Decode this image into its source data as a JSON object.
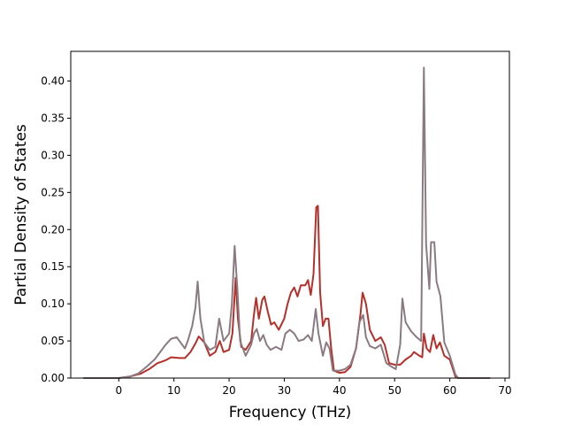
{
  "chart_data": {
    "type": "line",
    "title": "",
    "xlabel": "Frequency (THz)",
    "ylabel": "Partial Density of States",
    "xlim": [
      -8.7,
      70.8
    ],
    "ylim": [
      0.0,
      0.44
    ],
    "xticks": [
      0,
      10,
      20,
      30,
      40,
      50,
      60,
      70
    ],
    "yticks": [
      0.0,
      0.05,
      0.1,
      0.15,
      0.2,
      0.25,
      0.3,
      0.35,
      0.4
    ],
    "xtick_labels": [
      "0",
      "10",
      "20",
      "30",
      "40",
      "50",
      "60",
      "70"
    ],
    "ytick_labels": [
      "0.00",
      "0.05",
      "0.10",
      "0.15",
      "0.20",
      "0.25",
      "0.30",
      "0.35",
      "0.40"
    ],
    "grid": false,
    "legend": "none",
    "series": [
      {
        "color": "#b5302a",
        "points": [
          [
            -6.4,
            0.0
          ],
          [
            0.0,
            0.0
          ],
          [
            2.0,
            0.002
          ],
          [
            4.0,
            0.006
          ],
          [
            5.5,
            0.012
          ],
          [
            7.0,
            0.02
          ],
          [
            8.5,
            0.024
          ],
          [
            9.5,
            0.028
          ],
          [
            11.0,
            0.027
          ],
          [
            12.0,
            0.027
          ],
          [
            13.0,
            0.035
          ],
          [
            14.0,
            0.048
          ],
          [
            14.5,
            0.056
          ],
          [
            15.5,
            0.048
          ],
          [
            16.5,
            0.03
          ],
          [
            17.5,
            0.035
          ],
          [
            18.3,
            0.05
          ],
          [
            19.0,
            0.035
          ],
          [
            20.0,
            0.038
          ],
          [
            20.6,
            0.06
          ],
          [
            21.2,
            0.135
          ],
          [
            21.6,
            0.08
          ],
          [
            22.2,
            0.042
          ],
          [
            23.0,
            0.038
          ],
          [
            24.0,
            0.05
          ],
          [
            24.5,
            0.085
          ],
          [
            24.9,
            0.108
          ],
          [
            25.4,
            0.08
          ],
          [
            26.0,
            0.105
          ],
          [
            26.4,
            0.11
          ],
          [
            27.0,
            0.09
          ],
          [
            27.6,
            0.072
          ],
          [
            28.2,
            0.075
          ],
          [
            29.0,
            0.065
          ],
          [
            30.0,
            0.08
          ],
          [
            30.6,
            0.1
          ],
          [
            31.2,
            0.115
          ],
          [
            31.8,
            0.122
          ],
          [
            32.4,
            0.11
          ],
          [
            33.0,
            0.125
          ],
          [
            33.8,
            0.125
          ],
          [
            34.3,
            0.132
          ],
          [
            34.8,
            0.112
          ],
          [
            35.3,
            0.14
          ],
          [
            35.8,
            0.23
          ],
          [
            36.1,
            0.232
          ],
          [
            36.5,
            0.115
          ],
          [
            37.0,
            0.07
          ],
          [
            37.5,
            0.08
          ],
          [
            38.0,
            0.08
          ],
          [
            38.5,
            0.04
          ],
          [
            39.0,
            0.01
          ],
          [
            40.0,
            0.007
          ],
          [
            41.0,
            0.008
          ],
          [
            42.0,
            0.015
          ],
          [
            43.0,
            0.04
          ],
          [
            43.8,
            0.085
          ],
          [
            44.2,
            0.115
          ],
          [
            44.8,
            0.1
          ],
          [
            45.5,
            0.065
          ],
          [
            46.5,
            0.05
          ],
          [
            47.5,
            0.055
          ],
          [
            48.2,
            0.045
          ],
          [
            49.0,
            0.02
          ],
          [
            50.0,
            0.018
          ],
          [
            51.0,
            0.018
          ],
          [
            52.0,
            0.025
          ],
          [
            53.0,
            0.03
          ],
          [
            53.5,
            0.035
          ],
          [
            54.5,
            0.03
          ],
          [
            55.0,
            0.028
          ],
          [
            55.3,
            0.06
          ],
          [
            55.8,
            0.04
          ],
          [
            56.4,
            0.035
          ],
          [
            57.0,
            0.058
          ],
          [
            57.6,
            0.04
          ],
          [
            58.2,
            0.048
          ],
          [
            59.0,
            0.03
          ],
          [
            60.0,
            0.025
          ],
          [
            61.0,
            0.002
          ],
          [
            61.5,
            0.0
          ],
          [
            67.3,
            0.0
          ]
        ]
      },
      {
        "color": "#8a7a82",
        "points": [
          [
            -6.4,
            0.0
          ],
          [
            0.0,
            0.0
          ],
          [
            2.0,
            0.002
          ],
          [
            3.5,
            0.006
          ],
          [
            5.0,
            0.015
          ],
          [
            6.5,
            0.025
          ],
          [
            7.5,
            0.035
          ],
          [
            8.5,
            0.045
          ],
          [
            9.5,
            0.053
          ],
          [
            10.5,
            0.055
          ],
          [
            11.5,
            0.045
          ],
          [
            12.0,
            0.04
          ],
          [
            12.5,
            0.05
          ],
          [
            13.3,
            0.07
          ],
          [
            13.9,
            0.095
          ],
          [
            14.3,
            0.13
          ],
          [
            14.8,
            0.08
          ],
          [
            15.5,
            0.048
          ],
          [
            16.5,
            0.038
          ],
          [
            17.5,
            0.042
          ],
          [
            18.2,
            0.08
          ],
          [
            19.0,
            0.05
          ],
          [
            20.0,
            0.06
          ],
          [
            20.5,
            0.1
          ],
          [
            21.0,
            0.178
          ],
          [
            21.5,
            0.12
          ],
          [
            22.0,
            0.05
          ],
          [
            23.0,
            0.03
          ],
          [
            24.0,
            0.045
          ],
          [
            24.5,
            0.06
          ],
          [
            25.0,
            0.066
          ],
          [
            25.6,
            0.05
          ],
          [
            26.2,
            0.058
          ],
          [
            26.8,
            0.045
          ],
          [
            27.5,
            0.038
          ],
          [
            28.5,
            0.042
          ],
          [
            29.5,
            0.038
          ],
          [
            30.2,
            0.06
          ],
          [
            31.0,
            0.065
          ],
          [
            31.8,
            0.06
          ],
          [
            32.6,
            0.05
          ],
          [
            33.5,
            0.052
          ],
          [
            34.3,
            0.058
          ],
          [
            35.0,
            0.05
          ],
          [
            35.7,
            0.093
          ],
          [
            36.2,
            0.06
          ],
          [
            37.0,
            0.03
          ],
          [
            37.6,
            0.048
          ],
          [
            38.2,
            0.04
          ],
          [
            38.8,
            0.01
          ],
          [
            40.0,
            0.01
          ],
          [
            41.0,
            0.012
          ],
          [
            42.0,
            0.018
          ],
          [
            43.0,
            0.04
          ],
          [
            43.6,
            0.075
          ],
          [
            44.3,
            0.085
          ],
          [
            44.8,
            0.055
          ],
          [
            45.5,
            0.043
          ],
          [
            46.5,
            0.04
          ],
          [
            47.5,
            0.045
          ],
          [
            48.5,
            0.02
          ],
          [
            49.5,
            0.015
          ],
          [
            50.2,
            0.012
          ],
          [
            51.0,
            0.045
          ],
          [
            51.4,
            0.107
          ],
          [
            52.0,
            0.075
          ],
          [
            53.0,
            0.063
          ],
          [
            54.0,
            0.055
          ],
          [
            54.8,
            0.05
          ],
          [
            55.3,
            0.418
          ],
          [
            55.7,
            0.18
          ],
          [
            56.3,
            0.12
          ],
          [
            56.6,
            0.183
          ],
          [
            57.2,
            0.183
          ],
          [
            57.6,
            0.13
          ],
          [
            58.3,
            0.11
          ],
          [
            59.0,
            0.048
          ],
          [
            60.0,
            0.03
          ],
          [
            61.0,
            0.005
          ],
          [
            61.5,
            0.0
          ],
          [
            67.3,
            0.0
          ]
        ]
      }
    ]
  }
}
